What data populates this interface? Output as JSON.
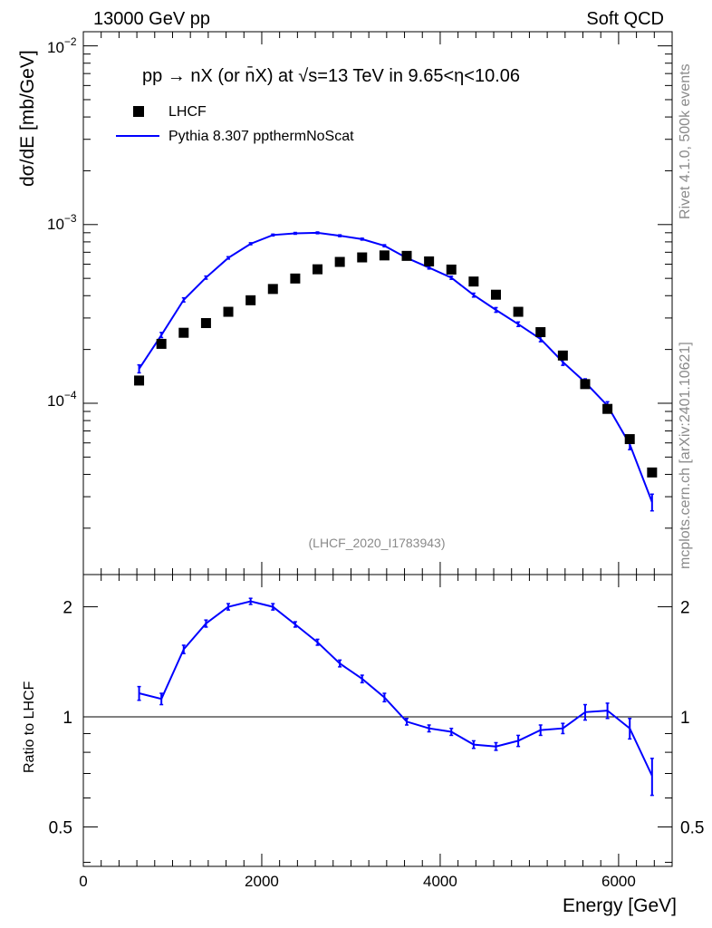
{
  "header": {
    "left": "13000 GeV pp",
    "right": "Soft QCD"
  },
  "side": {
    "rivet": "Rivet 4.1.0,  500k events",
    "mcplots": "mcplots.cern.ch [arXiv:2401.10621]"
  },
  "plot": {
    "title": "pp → nX (or n̄X) at √s=13 TeV in 9.65<η<10.06",
    "watermark": "(LHCF_2020_I1783943)",
    "ylabel": "dσ/dE [mb/GeV]",
    "ratio_ylabel": "Ratio to LHCF",
    "xlabel": "Energy [GeV]",
    "legend": {
      "data": "LHCF",
      "mc": "Pythia 8.307 ppthermNoScat"
    },
    "colors": {
      "mc": "#0000ff",
      "data": "#000000"
    }
  },
  "chart_data": {
    "type": "scatter",
    "title": "pp → nX (or n̄X) at √s=13 TeV in 9.65<η<10.06",
    "xlabel": "Energy [GeV]",
    "ylabel": "dσ/dE [mb/GeV]",
    "xlim": [
      0,
      6600
    ],
    "ylim": [
      1.1e-05,
      0.012
    ],
    "yscale": "log",
    "x_ticks": [
      0,
      2000,
      4000,
      6000
    ],
    "y_ticks": [
      "10^-4",
      "10^-3",
      "10^-2"
    ],
    "x": [
      625,
      875,
      1125,
      1375,
      1625,
      1875,
      2125,
      2375,
      2625,
      2875,
      3125,
      3375,
      3625,
      3875,
      4125,
      4375,
      4625,
      4875,
      5125,
      5375,
      5625,
      5875,
      6125,
      6375
    ],
    "series": [
      {
        "name": "LHCF",
        "style": "markers",
        "values": [
          0.000134,
          0.000215,
          0.000248,
          0.000281,
          0.000325,
          0.000377,
          0.000436,
          0.000499,
          0.000562,
          0.000618,
          0.000655,
          0.000672,
          0.000668,
          0.000622,
          0.00056,
          0.00048,
          0.000405,
          0.000325,
          0.00025,
          0.000185,
          0.000128,
          9.3e-05,
          6.3e-05,
          4.1e-05
        ]
      },
      {
        "name": "Pythia 8.307 ppthermNoScat",
        "style": "line",
        "values": [
          0.000156,
          0.000241,
          0.000379,
          0.000505,
          0.000651,
          0.000781,
          0.000874,
          0.000893,
          0.000899,
          0.000866,
          0.000829,
          0.000761,
          0.000651,
          0.000574,
          0.000504,
          0.000403,
          0.000333,
          0.000277,
          0.000229,
          0.00017,
          0.000131,
          9.7e-05,
          5.9e-05,
          2.8e-05
        ],
        "errors": [
          8e-06,
          8e-06,
          1e-05,
          1e-05,
          1e-05,
          1e-05,
          1e-05,
          1e-05,
          1e-05,
          1e-05,
          1e-05,
          1e-05,
          1e-05,
          1e-05,
          1e-05,
          1e-05,
          1e-05,
          8e-06,
          8e-06,
          7e-06,
          6e-06,
          5e-06,
          4e-06,
          3e-06
        ]
      }
    ],
    "ratio": {
      "ylabel": "Ratio to LHCF",
      "ylim": [
        0.39,
        2.45
      ],
      "yscale": "log",
      "y_ticks": [
        0.5,
        1,
        2
      ],
      "values": [
        1.16,
        1.12,
        1.53,
        1.8,
        2.0,
        2.07,
        2.0,
        1.79,
        1.6,
        1.4,
        1.27,
        1.13,
        0.97,
        0.93,
        0.91,
        0.84,
        0.83,
        0.86,
        0.92,
        0.93,
        1.03,
        1.04,
        0.93,
        0.69
      ],
      "errors": [
        0.05,
        0.04,
        0.04,
        0.04,
        0.04,
        0.04,
        0.04,
        0.03,
        0.03,
        0.03,
        0.03,
        0.03,
        0.02,
        0.02,
        0.02,
        0.02,
        0.02,
        0.03,
        0.03,
        0.03,
        0.05,
        0.05,
        0.06,
        0.08
      ]
    }
  }
}
